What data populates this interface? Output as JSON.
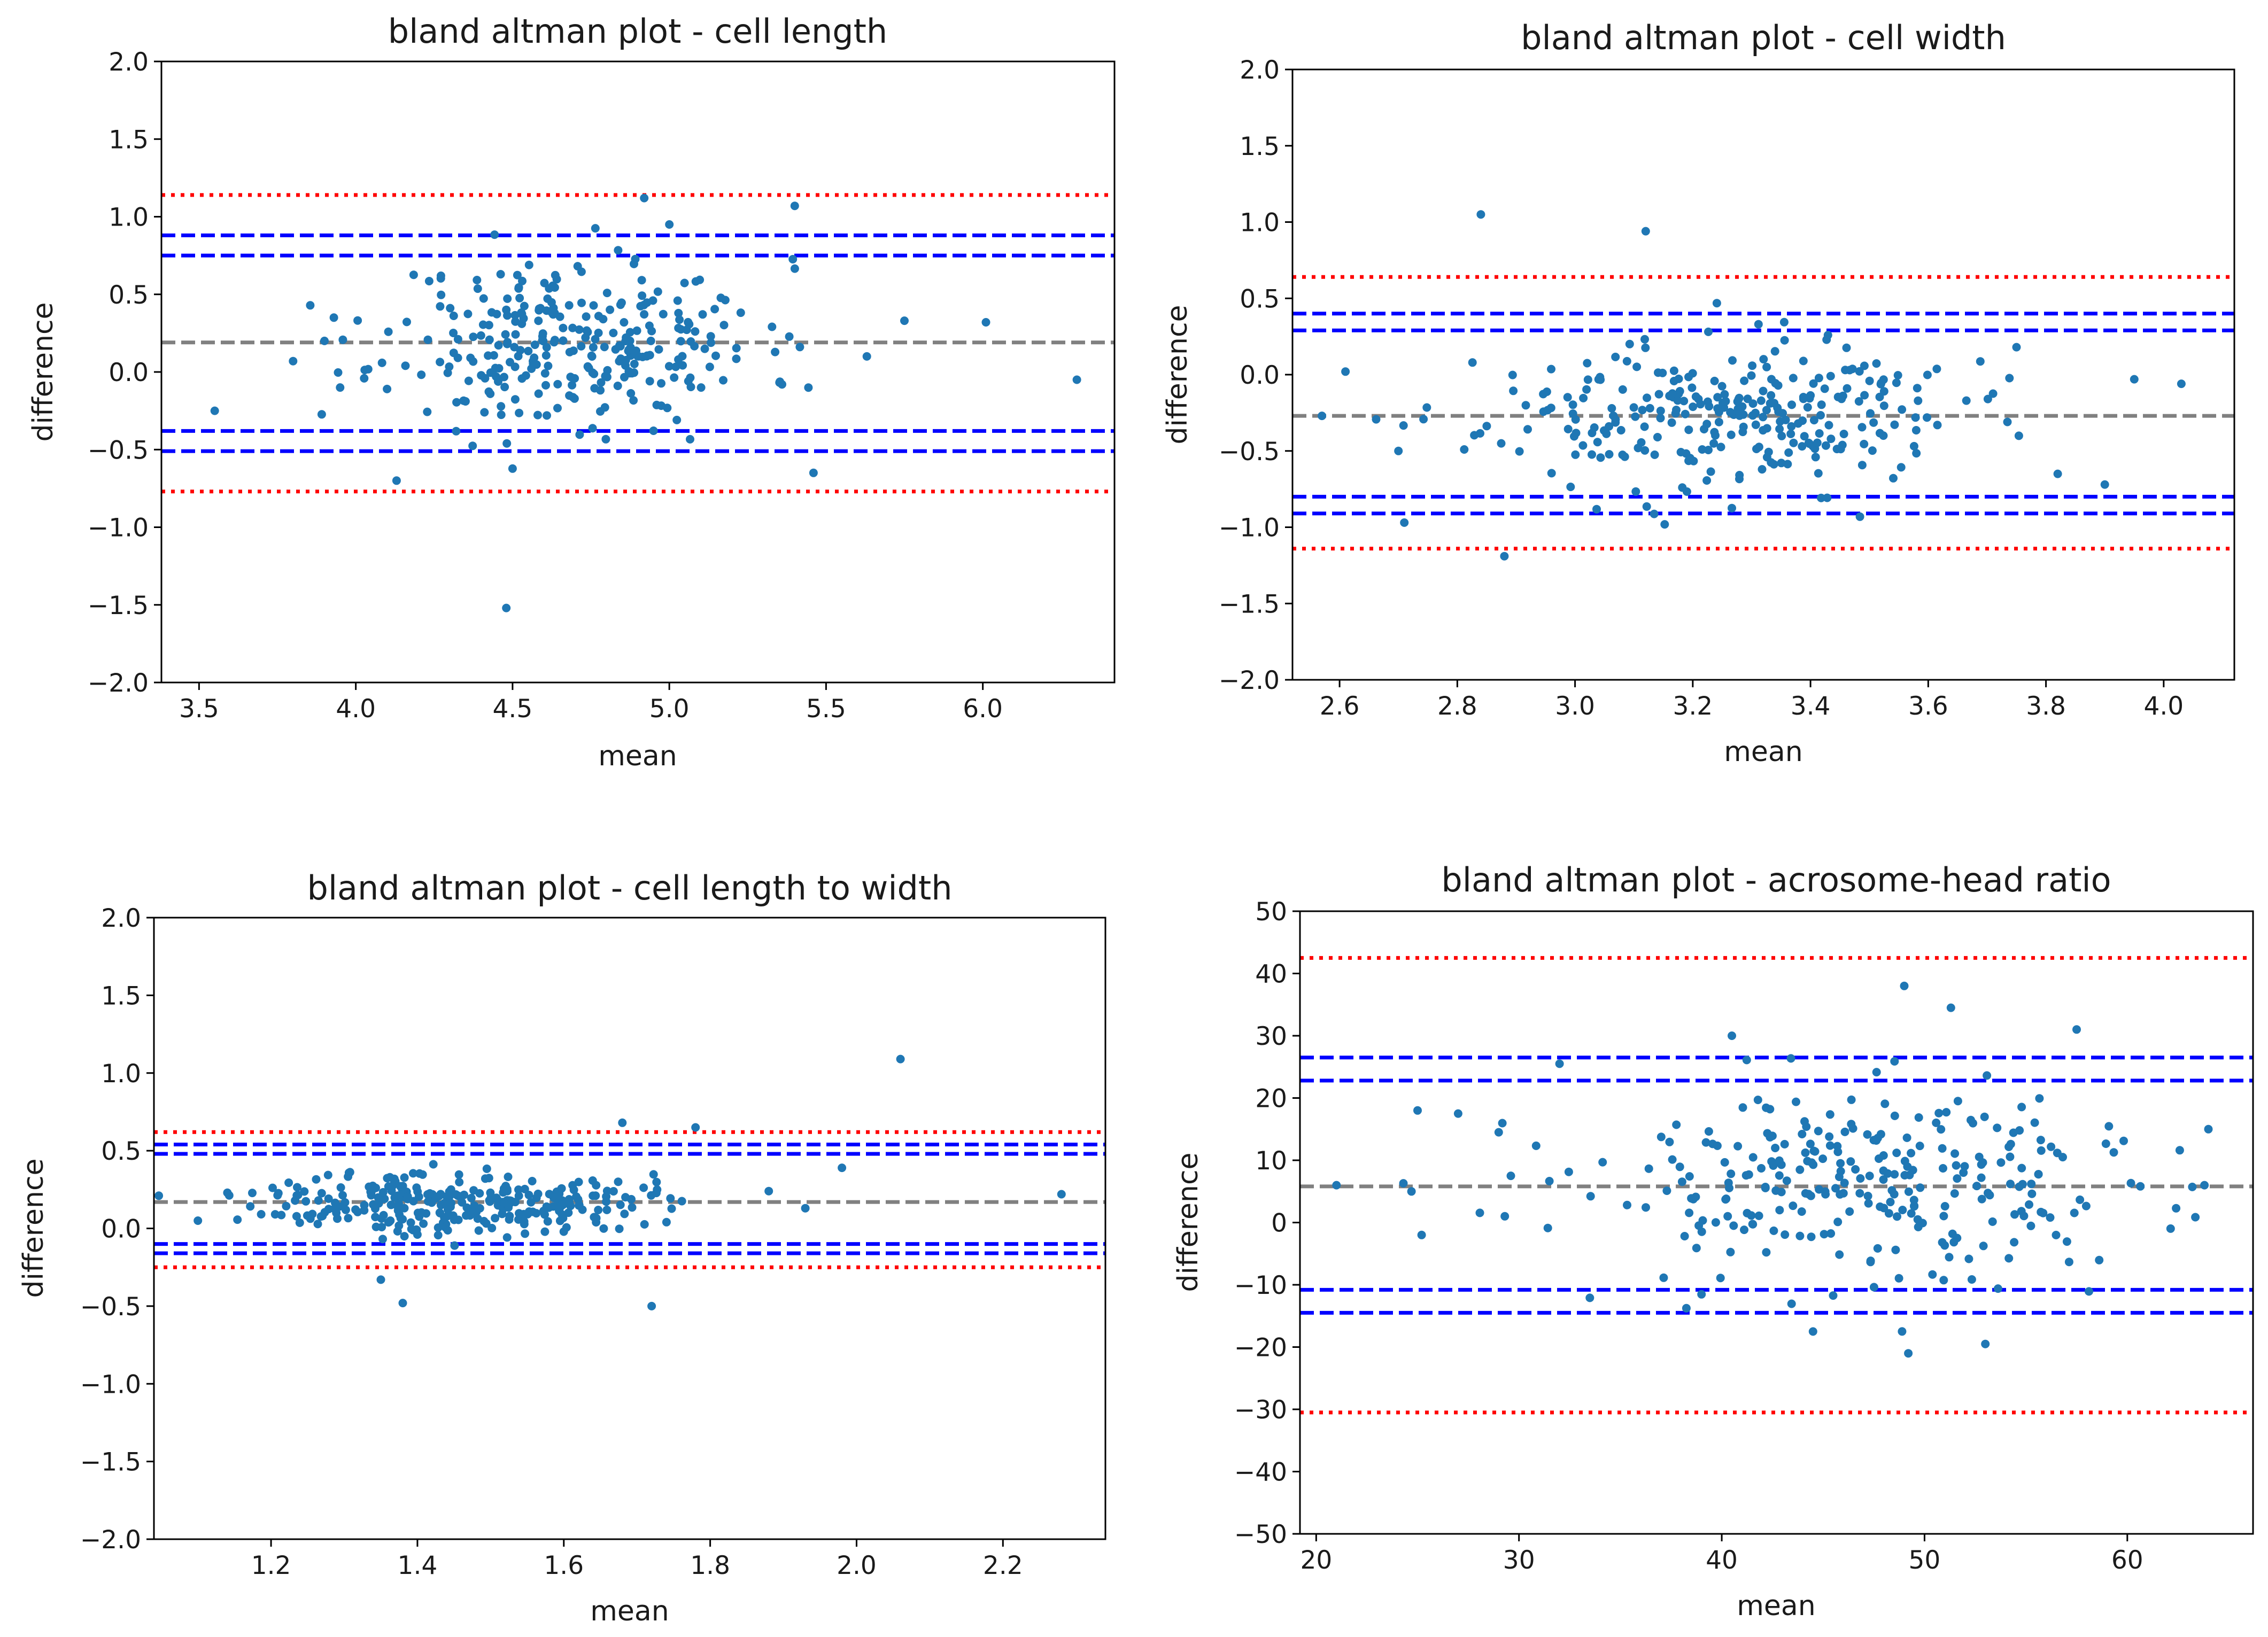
{
  "colors": {
    "point": "#1f77b4",
    "mean_line": "#808080",
    "loa_ci": "#0000ff",
    "loa_outer": "#ff0000",
    "axes": "#000000",
    "background": "#ffffff"
  },
  "chart_data": [
    {
      "type": "scatter",
      "title": "bland altman plot - cell length",
      "xlabel": "mean",
      "ylabel": "difference",
      "xlim": [
        3.38,
        6.42
      ],
      "ylim": [
        -2.0,
        2.0
      ],
      "xticks": [
        3.5,
        4.0,
        4.5,
        5.0,
        5.5,
        6.0
      ],
      "xtick_labels": [
        "3.5",
        "4.0",
        "4.5",
        "5.0",
        "5.5",
        "6.0"
      ],
      "yticks": [
        -2.0,
        -1.5,
        -1.0,
        -0.5,
        0.0,
        0.5,
        1.0,
        1.5,
        2.0
      ],
      "ytick_labels": [
        "−2.0",
        "−1.5",
        "−1.0",
        "−0.5",
        "0.0",
        "0.5",
        "1.0",
        "1.5",
        "2.0"
      ],
      "lines": [
        {
          "name": "mean-difference",
          "y": 0.19,
          "style": "gray-dashed"
        },
        {
          "name": "upper-loa-ci-high",
          "y": 0.88,
          "style": "blue-dashed"
        },
        {
          "name": "upper-loa-ci-low",
          "y": 0.75,
          "style": "blue-dashed"
        },
        {
          "name": "lower-loa-ci-high",
          "y": -0.38,
          "style": "blue-dashed"
        },
        {
          "name": "lower-loa-ci-low",
          "y": -0.51,
          "style": "blue-dashed"
        },
        {
          "name": "upper-bound",
          "y": 1.14,
          "style": "red-dotted"
        },
        {
          "name": "lower-bound",
          "y": -0.77,
          "style": "red-dotted"
        }
      ],
      "points": {
        "seed": 11,
        "n": 300,
        "x_center": 4.7,
        "x_spread": 0.3,
        "y_center": 0.19,
        "y_spread": 0.27,
        "outliers": [
          [
            3.55,
            -0.25
          ],
          [
            3.8,
            0.07
          ],
          [
            3.9,
            0.2
          ],
          [
            3.93,
            0.35
          ],
          [
            3.95,
            -0.1
          ],
          [
            4.13,
            -0.7
          ],
          [
            4.48,
            -1.52
          ],
          [
            4.92,
            1.12
          ],
          [
            5.0,
            0.95
          ],
          [
            5.4,
            1.07
          ],
          [
            5.46,
            -0.65
          ],
          [
            5.63,
            0.1
          ],
          [
            5.75,
            0.33
          ],
          [
            6.01,
            0.32
          ],
          [
            6.3,
            -0.05
          ]
        ]
      }
    },
    {
      "type": "scatter",
      "title": "bland altman plot - cell width",
      "xlabel": "mean",
      "ylabel": "difference",
      "xlim": [
        2.52,
        4.12
      ],
      "ylim": [
        -2.0,
        2.0
      ],
      "xticks": [
        2.6,
        2.8,
        3.0,
        3.2,
        3.4,
        3.6,
        3.8,
        4.0
      ],
      "xtick_labels": [
        "2.6",
        "2.8",
        "3.0",
        "3.2",
        "3.4",
        "3.6",
        "3.8",
        "4.0"
      ],
      "yticks": [
        -2.0,
        -1.5,
        -1.0,
        -0.5,
        0.0,
        0.5,
        1.0,
        1.5,
        2.0
      ],
      "ytick_labels": [
        "−2.0",
        "−1.5",
        "−1.0",
        "−0.5",
        "0.0",
        "0.5",
        "1.0",
        "1.5",
        "2.0"
      ],
      "lines": [
        {
          "name": "mean-difference",
          "y": -0.27,
          "style": "gray-dashed"
        },
        {
          "name": "upper-loa-ci-high",
          "y": 0.4,
          "style": "blue-dashed"
        },
        {
          "name": "upper-loa-ci-low",
          "y": 0.29,
          "style": "blue-dashed"
        },
        {
          "name": "lower-loa-ci-high",
          "y": -0.8,
          "style": "blue-dashed"
        },
        {
          "name": "lower-loa-ci-low",
          "y": -0.91,
          "style": "blue-dashed"
        },
        {
          "name": "upper-bound",
          "y": 0.64,
          "style": "red-dotted"
        },
        {
          "name": "lower-bound",
          "y": -1.14,
          "style": "red-dotted"
        }
      ],
      "points": {
        "seed": 23,
        "n": 290,
        "x_center": 3.25,
        "x_spread": 0.2,
        "y_center": -0.27,
        "y_spread": 0.24,
        "outliers": [
          [
            2.57,
            -0.27
          ],
          [
            2.61,
            0.02
          ],
          [
            2.7,
            -0.5
          ],
          [
            2.71,
            -0.97
          ],
          [
            2.84,
            1.05
          ],
          [
            2.88,
            -1.19
          ],
          [
            3.12,
            0.94
          ],
          [
            3.75,
            0.18
          ],
          [
            3.82,
            -0.65
          ],
          [
            3.9,
            -0.72
          ],
          [
            3.95,
            -0.03
          ],
          [
            4.03,
            -0.06
          ]
        ]
      }
    },
    {
      "type": "scatter",
      "title": "bland altman plot - cell length to width",
      "xlabel": "mean",
      "ylabel": "difference",
      "xlim": [
        1.04,
        2.34
      ],
      "ylim": [
        -2.0,
        2.0
      ],
      "xticks": [
        1.2,
        1.4,
        1.6,
        1.8,
        2.0,
        2.2
      ],
      "xtick_labels": [
        "1.2",
        "1.4",
        "1.6",
        "1.8",
        "2.0",
        "2.2"
      ],
      "yticks": [
        -2.0,
        -1.5,
        -1.0,
        -0.5,
        0.0,
        0.5,
        1.0,
        1.5,
        2.0
      ],
      "ytick_labels": [
        "−2.0",
        "−1.5",
        "−1.0",
        "−0.5",
        "0.0",
        "0.5",
        "1.0",
        "1.5",
        "2.0"
      ],
      "lines": [
        {
          "name": "mean-difference",
          "y": 0.17,
          "style": "gray-dashed"
        },
        {
          "name": "upper-loa-ci-high",
          "y": 0.54,
          "style": "blue-dashed"
        },
        {
          "name": "upper-loa-ci-low",
          "y": 0.48,
          "style": "blue-dashed"
        },
        {
          "name": "lower-loa-ci-high",
          "y": -0.1,
          "style": "blue-dashed"
        },
        {
          "name": "lower-loa-ci-low",
          "y": -0.16,
          "style": "blue-dashed"
        },
        {
          "name": "upper-bound",
          "y": 0.62,
          "style": "red-dotted"
        },
        {
          "name": "lower-bound",
          "y": -0.25,
          "style": "red-dotted"
        }
      ],
      "points": {
        "seed": 37,
        "n": 300,
        "x_center": 1.45,
        "x_spread": 0.13,
        "y_center": 0.17,
        "y_spread": 0.1,
        "outliers": [
          [
            1.1,
            0.05
          ],
          [
            1.35,
            -0.33
          ],
          [
            1.38,
            -0.48
          ],
          [
            1.68,
            0.68
          ],
          [
            1.72,
            -0.5
          ],
          [
            1.78,
            0.65
          ],
          [
            1.88,
            0.24
          ],
          [
            1.93,
            0.13
          ],
          [
            1.98,
            0.39
          ],
          [
            2.06,
            1.09
          ],
          [
            2.28,
            0.22
          ]
        ]
      }
    },
    {
      "type": "scatter",
      "title": "bland altman plot - acrosome-head ratio",
      "xlabel": "mean",
      "ylabel": "difference",
      "xlim": [
        19.2,
        66.2
      ],
      "ylim": [
        -50,
        50
      ],
      "xticks": [
        20,
        30,
        40,
        50,
        60
      ],
      "xtick_labels": [
        "20",
        "30",
        "40",
        "50",
        "60"
      ],
      "yticks": [
        -50,
        -40,
        -30,
        -20,
        -10,
        0,
        10,
        20,
        30,
        40,
        50
      ],
      "ytick_labels": [
        "−50",
        "−40",
        "−30",
        "−20",
        "−10",
        "0",
        "10",
        "20",
        "30",
        "40",
        "50"
      ],
      "lines": [
        {
          "name": "mean-difference",
          "y": 5.8,
          "style": "gray-dashed"
        },
        {
          "name": "upper-loa-ci-high",
          "y": 26.5,
          "style": "blue-dashed"
        },
        {
          "name": "upper-loa-ci-low",
          "y": 22.8,
          "style": "blue-dashed"
        },
        {
          "name": "lower-loa-ci-high",
          "y": -10.8,
          "style": "blue-dashed"
        },
        {
          "name": "lower-loa-ci-low",
          "y": -14.5,
          "style": "blue-dashed"
        },
        {
          "name": "upper-bound",
          "y": 42.5,
          "style": "red-dotted"
        },
        {
          "name": "lower-bound",
          "y": -30.5,
          "style": "red-dotted"
        }
      ],
      "points": {
        "seed": 53,
        "n": 280,
        "x_center": 48,
        "x_spread": 7.5,
        "y_center": 5.8,
        "y_spread": 8.2,
        "outliers": [
          [
            21,
            6
          ],
          [
            24.3,
            6.3
          ],
          [
            24.7,
            5
          ],
          [
            25,
            18
          ],
          [
            25.2,
            -2
          ],
          [
            27,
            17.5
          ],
          [
            29,
            14.5
          ],
          [
            29.3,
            1
          ],
          [
            29.6,
            7.5
          ],
          [
            32,
            25.5
          ],
          [
            40.5,
            30
          ],
          [
            44.5,
            -17.5
          ],
          [
            49,
            38
          ],
          [
            49.2,
            -21
          ],
          [
            51.3,
            34.5
          ],
          [
            53,
            -19.5
          ],
          [
            57.5,
            31
          ],
          [
            64,
            15
          ]
        ]
      }
    }
  ]
}
